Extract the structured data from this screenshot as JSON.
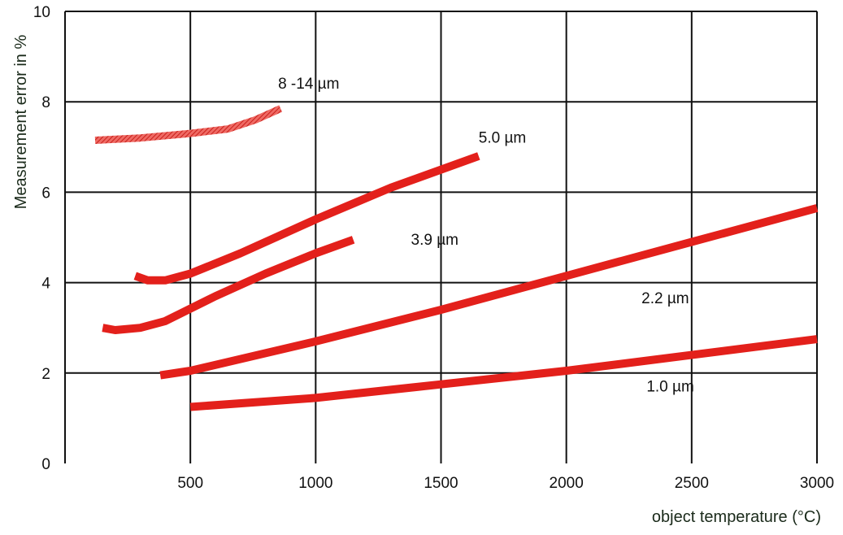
{
  "chart_data": {
    "type": "line",
    "xlabel": "object temperature (°C)",
    "ylabel": "Measurement error in %",
    "xlim": [
      0,
      3000
    ],
    "ylim": [
      0,
      10
    ],
    "x_ticks": [
      500,
      1000,
      1500,
      2000,
      2500,
      3000
    ],
    "y_ticks": [
      0,
      2,
      4,
      6,
      8,
      10
    ],
    "grid": true,
    "series": [
      {
        "name": "8 -14 µm",
        "color": "#e8403a",
        "style": "hatched",
        "x": [
          120,
          300,
          500,
          650,
          760,
          860
        ],
        "y": [
          7.15,
          7.2,
          7.3,
          7.4,
          7.6,
          7.85
        ]
      },
      {
        "name": "5.0 µm",
        "color": "#e3201b",
        "style": "solid",
        "x": [
          280,
          330,
          400,
          500,
          700,
          1000,
          1300,
          1650
        ],
        "y": [
          4.15,
          4.05,
          4.05,
          4.2,
          4.65,
          5.4,
          6.1,
          6.8
        ]
      },
      {
        "name": "3.9 µm",
        "color": "#e3201b",
        "style": "solid",
        "x": [
          150,
          200,
          300,
          400,
          600,
          800,
          1000,
          1150
        ],
        "y": [
          3.0,
          2.95,
          3.0,
          3.15,
          3.7,
          4.2,
          4.65,
          4.95
        ]
      },
      {
        "name": "2.2 µm",
        "color": "#e3201b",
        "style": "solid",
        "x": [
          380,
          500,
          1000,
          1500,
          2000,
          2500,
          3000
        ],
        "y": [
          1.95,
          2.05,
          2.7,
          3.4,
          4.15,
          4.9,
          5.65
        ]
      },
      {
        "name": "1.0 µm",
        "color": "#e3201b",
        "style": "solid",
        "x": [
          500,
          1000,
          1500,
          2000,
          2500,
          3000
        ],
        "y": [
          1.25,
          1.45,
          1.75,
          2.05,
          2.4,
          2.75
        ]
      }
    ],
    "annotations": [
      {
        "text": "8 -14 µm",
        "x": 850,
        "y": 8.4
      },
      {
        "text": "5.0 µm",
        "x": 1650,
        "y": 7.2
      },
      {
        "text": "3.9 µm",
        "x": 1380,
        "y": 4.95
      },
      {
        "text": "2.2 µm",
        "x": 2300,
        "y": 3.65
      },
      {
        "text": "1.0 µm",
        "x": 2320,
        "y": 1.7
      }
    ]
  }
}
